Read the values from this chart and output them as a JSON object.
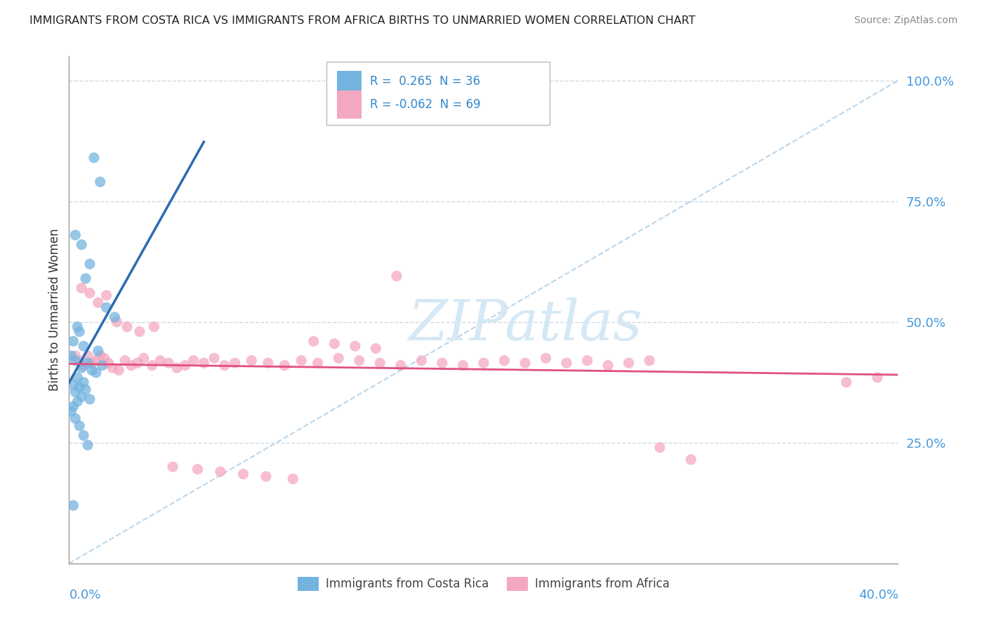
{
  "title": "IMMIGRANTS FROM COSTA RICA VS IMMIGRANTS FROM AFRICA BIRTHS TO UNMARRIED WOMEN CORRELATION CHART",
  "source": "Source: ZipAtlas.com",
  "ylabel": "Births to Unmarried Women",
  "legend1_r": " 0.265",
  "legend1_n": "36",
  "legend2_r": "-0.062",
  "legend2_n": "69",
  "blue_color": "#74b3e0",
  "pink_color": "#f4a8c0",
  "blue_line_color": "#2b6cb0",
  "pink_line_color": "#e05080",
  "diag_color": "#a8cce8",
  "xlim": [
    0.0,
    0.4
  ],
  "ylim": [
    0.0,
    1.05
  ],
  "background_color": "#ffffff",
  "grid_color": "#d0d8e8",
  "watermark_color": "#d5e8f5",
  "blue_scatter_x": [
    0.012,
    0.015,
    0.003,
    0.006,
    0.01,
    0.008,
    0.018,
    0.022,
    0.004,
    0.005,
    0.002,
    0.007,
    0.014,
    0.001,
    0.003,
    0.009,
    0.016,
    0.006,
    0.011,
    0.013,
    0.004,
    0.007,
    0.002,
    0.005,
    0.008,
    0.003,
    0.006,
    0.01,
    0.004,
    0.002,
    0.001,
    0.003,
    0.005,
    0.007,
    0.009,
    0.002
  ],
  "blue_scatter_y": [
    0.84,
    0.79,
    0.68,
    0.66,
    0.62,
    0.59,
    0.53,
    0.51,
    0.49,
    0.48,
    0.46,
    0.45,
    0.44,
    0.43,
    0.42,
    0.415,
    0.41,
    0.405,
    0.4,
    0.395,
    0.385,
    0.375,
    0.37,
    0.365,
    0.36,
    0.355,
    0.345,
    0.34,
    0.335,
    0.325,
    0.315,
    0.3,
    0.285,
    0.265,
    0.245,
    0.12
  ],
  "pink_scatter_x": [
    0.003,
    0.005,
    0.007,
    0.009,
    0.011,
    0.013,
    0.015,
    0.017,
    0.019,
    0.021,
    0.024,
    0.027,
    0.03,
    0.033,
    0.036,
    0.04,
    0.044,
    0.048,
    0.052,
    0.056,
    0.06,
    0.065,
    0.07,
    0.075,
    0.08,
    0.088,
    0.096,
    0.104,
    0.112,
    0.12,
    0.13,
    0.14,
    0.15,
    0.16,
    0.17,
    0.18,
    0.19,
    0.2,
    0.21,
    0.22,
    0.23,
    0.24,
    0.25,
    0.26,
    0.27,
    0.28,
    0.006,
    0.01,
    0.014,
    0.018,
    0.023,
    0.028,
    0.034,
    0.041,
    0.05,
    0.062,
    0.073,
    0.084,
    0.095,
    0.108,
    0.118,
    0.128,
    0.138,
    0.148,
    0.158,
    0.285,
    0.3,
    0.375,
    0.39
  ],
  "pink_scatter_y": [
    0.43,
    0.42,
    0.41,
    0.43,
    0.415,
    0.42,
    0.43,
    0.425,
    0.415,
    0.405,
    0.4,
    0.42,
    0.41,
    0.415,
    0.425,
    0.41,
    0.42,
    0.415,
    0.405,
    0.41,
    0.42,
    0.415,
    0.425,
    0.41,
    0.415,
    0.42,
    0.415,
    0.41,
    0.42,
    0.415,
    0.425,
    0.42,
    0.415,
    0.41,
    0.42,
    0.415,
    0.41,
    0.415,
    0.42,
    0.415,
    0.425,
    0.415,
    0.42,
    0.41,
    0.415,
    0.42,
    0.57,
    0.56,
    0.54,
    0.555,
    0.5,
    0.49,
    0.48,
    0.49,
    0.2,
    0.195,
    0.19,
    0.185,
    0.18,
    0.175,
    0.46,
    0.455,
    0.45,
    0.445,
    0.595,
    0.24,
    0.215,
    0.375,
    0.385
  ]
}
